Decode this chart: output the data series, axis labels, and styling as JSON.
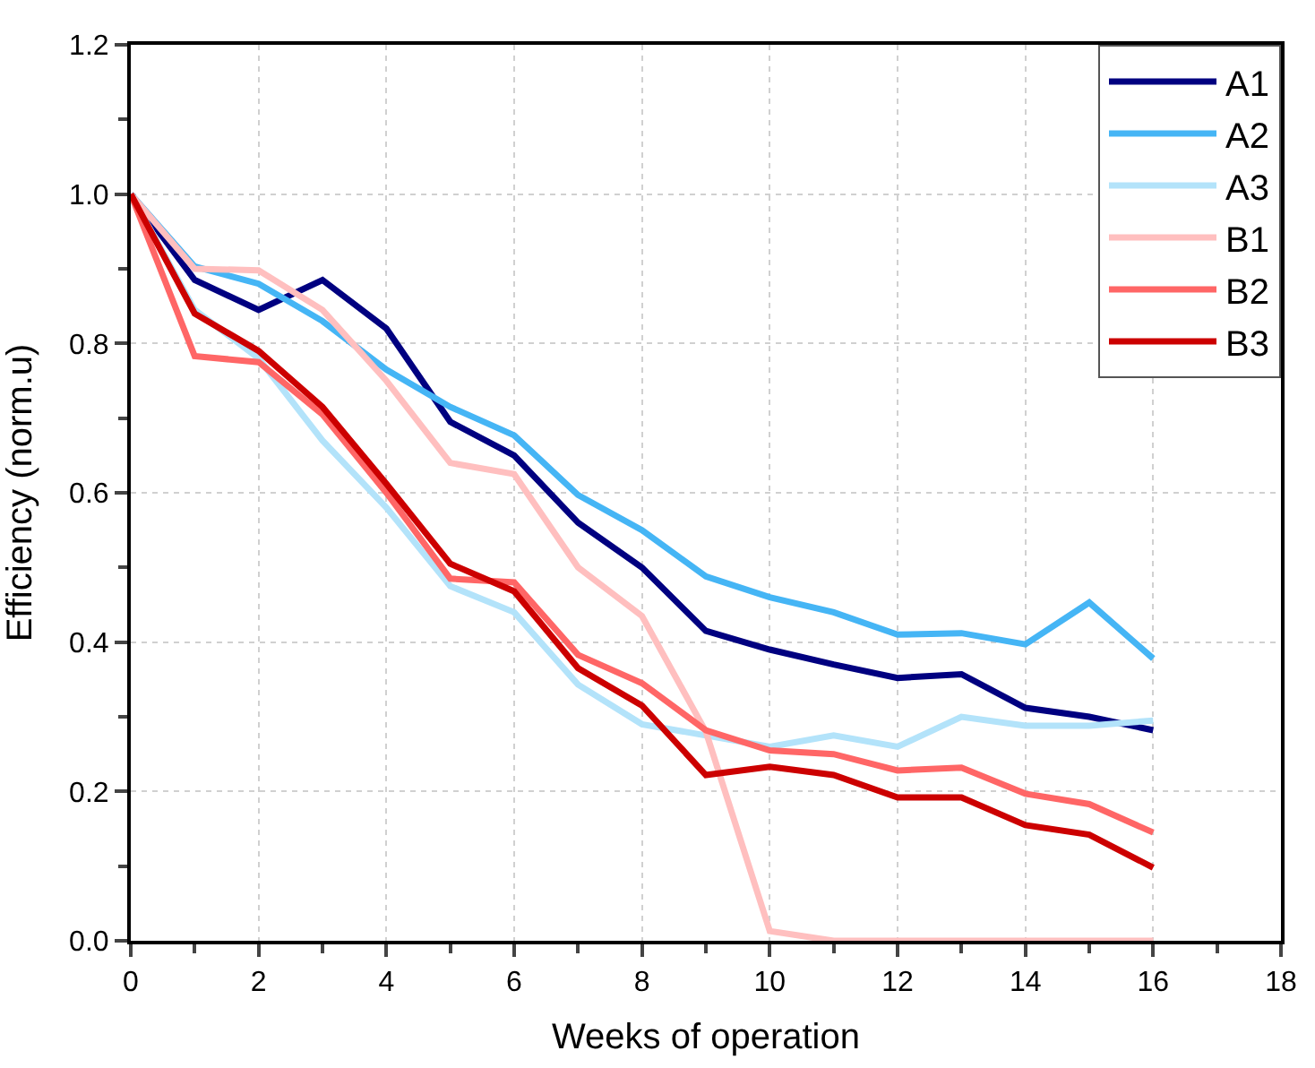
{
  "chart_data": {
    "type": "line",
    "xlabel": "Weeks of operation",
    "ylabel": "Efficiency (norm.u)",
    "x": [
      0,
      1,
      2,
      3,
      4,
      5,
      6,
      7,
      8,
      9,
      10,
      11,
      12,
      13,
      14,
      15,
      16
    ],
    "xlim": [
      0,
      18
    ],
    "xticks": [
      0,
      2,
      4,
      6,
      8,
      10,
      12,
      14,
      16,
      18
    ],
    "ylim": [
      0,
      1.2
    ],
    "yticks": [
      {
        "value": 0,
        "label": "0.0"
      },
      {
        "value": 0.2,
        "label": "0.2"
      },
      {
        "value": 0.4,
        "label": "0.4"
      },
      {
        "value": 0.6,
        "label": "0.6"
      },
      {
        "value": 0.8,
        "label": "0.8"
      },
      {
        "value": 1.0,
        "label": "1.0"
      },
      {
        "value": 1.2,
        "label": "1.2"
      }
    ],
    "grid": true,
    "legend": "top right",
    "marker": "none",
    "line_style": "solid",
    "series": [
      {
        "name": "A1",
        "color": "#000080",
        "values": [
          1.0,
          0.885,
          0.845,
          0.885,
          0.82,
          0.695,
          0.65,
          0.56,
          0.5,
          0.415,
          0.39,
          0.37,
          0.352,
          0.357,
          0.312,
          0.3,
          0.282
        ]
      },
      {
        "name": "A2",
        "color": "#45b5f5",
        "values": [
          1.0,
          0.903,
          0.88,
          0.83,
          0.765,
          0.715,
          0.677,
          0.597,
          0.55,
          0.488,
          0.46,
          0.44,
          0.41,
          0.412,
          0.397,
          0.453,
          0.378
        ]
      },
      {
        "name": "A3",
        "color": "#b3e3fa",
        "values": [
          1.0,
          0.845,
          0.78,
          0.67,
          0.58,
          0.475,
          0.44,
          0.343,
          0.29,
          0.275,
          0.26,
          0.275,
          0.26,
          0.3,
          0.288,
          0.288,
          0.295
        ]
      },
      {
        "name": "B1",
        "color": "#ffbfbf",
        "values": [
          1.0,
          0.9,
          0.898,
          0.845,
          0.75,
          0.64,
          0.625,
          0.5,
          0.435,
          0.28,
          0.013,
          0.0,
          0.0,
          0.0,
          0.0,
          0.0,
          0.0
        ]
      },
      {
        "name": "B2",
        "color": "#ff6666",
        "values": [
          1.0,
          0.783,
          0.775,
          0.705,
          0.6,
          0.485,
          0.48,
          0.383,
          0.345,
          0.282,
          0.255,
          0.25,
          0.228,
          0.232,
          0.197,
          0.183,
          0.145
        ]
      },
      {
        "name": "B3",
        "color": "#cc0000",
        "values": [
          1.0,
          0.84,
          0.79,
          0.715,
          0.612,
          0.505,
          0.468,
          0.365,
          0.315,
          0.222,
          0.233,
          0.222,
          0.192,
          0.192,
          0.155,
          0.142,
          0.098
        ]
      }
    ]
  }
}
